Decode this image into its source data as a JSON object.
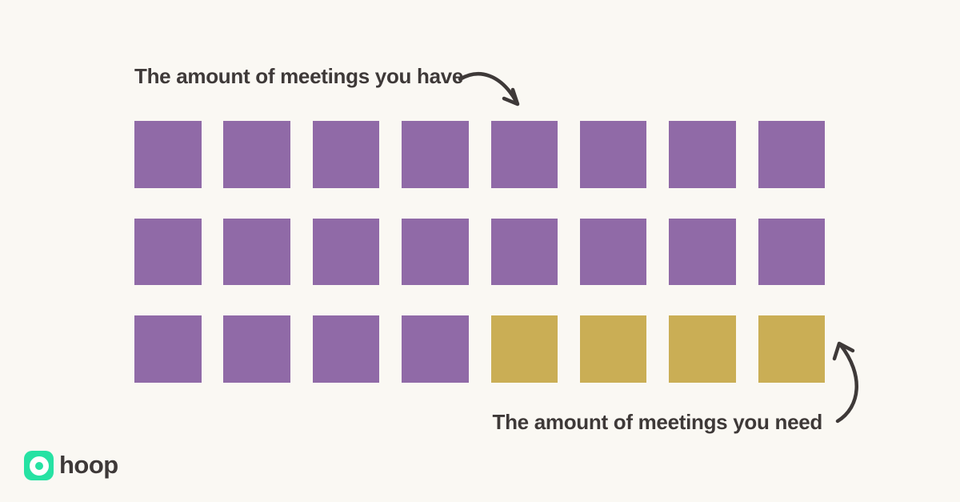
{
  "page": {
    "background": "#FAF8F3"
  },
  "colors": {
    "background": "#FAF8F3",
    "purple": "#906AA7",
    "gold": "#CAAE55",
    "text": "#3E3938",
    "arrow": "#3E3938",
    "brand_green": "#26E2A3"
  },
  "labels": {
    "have": "The amount of meetings you have",
    "need": "The amount of meetings you need"
  },
  "icons": {
    "arrow_down": "curved-arrow-pointing-down-to-grid",
    "arrow_up": "curved-arrow-pointing-up-to-gold-squares",
    "logo_ring": "hoop-ring-icon"
  },
  "logo": {
    "text": "hoop"
  },
  "chart_data": {
    "type": "waffle",
    "title": "",
    "rows": 3,
    "cols": 8,
    "total_units": 24,
    "unit": "meetings",
    "legend_position": "annotations",
    "series": [
      {
        "name": "The amount of meetings you have",
        "value": 24,
        "color": "#906AA7"
      },
      {
        "name": "The amount of meetings you need",
        "value": 4,
        "color": "#CAAE55"
      }
    ],
    "cells": [
      "purple",
      "purple",
      "purple",
      "purple",
      "purple",
      "purple",
      "purple",
      "purple",
      "purple",
      "purple",
      "purple",
      "purple",
      "purple",
      "purple",
      "purple",
      "purple",
      "purple",
      "purple",
      "purple",
      "purple",
      "gold",
      "gold",
      "gold",
      "gold"
    ]
  }
}
